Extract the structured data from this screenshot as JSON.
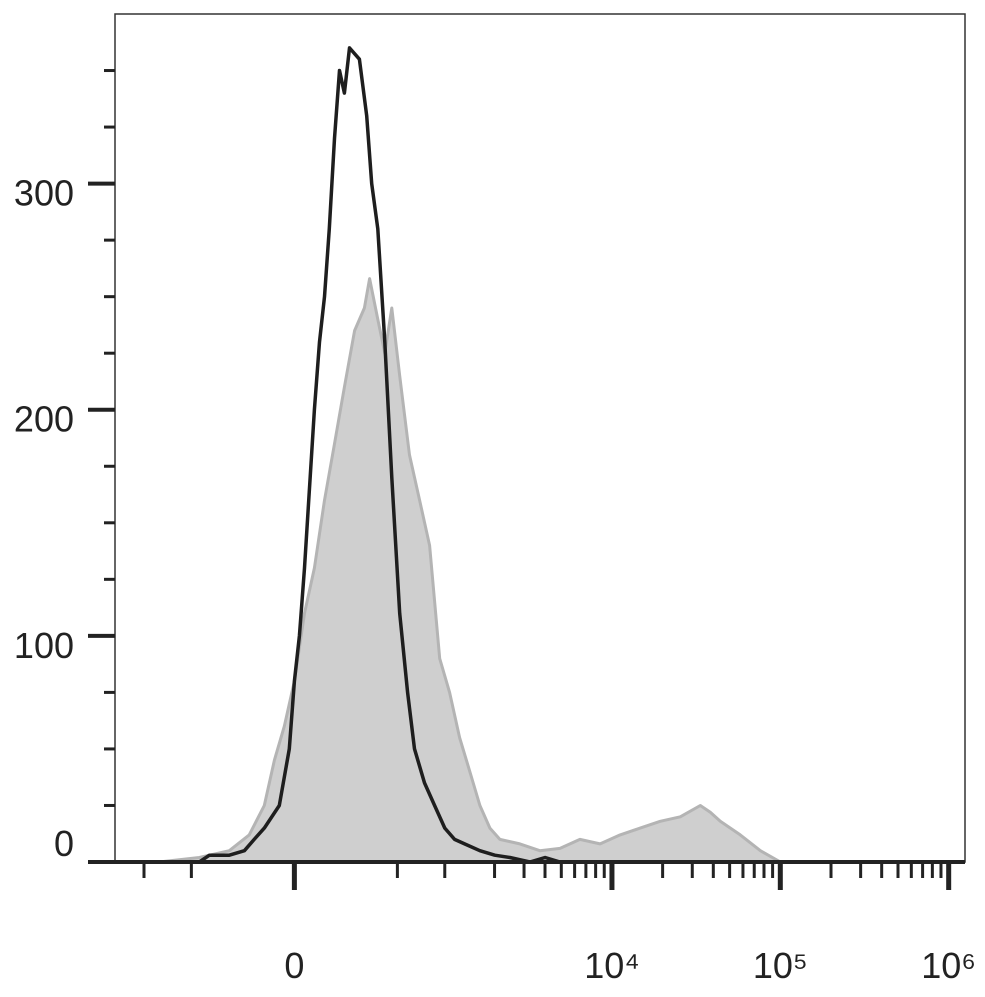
{
  "chart_data": {
    "type": "histogram-overlay",
    "xscale": "asinh",
    "xlim": [
      -1500,
      1250000
    ],
    "ylim": [
      0,
      375
    ],
    "xticks": [
      0,
      {
        "value": 10000,
        "label": "10⁴"
      },
      {
        "value": 100000,
        "label": "10⁵"
      },
      {
        "value": 1000000,
        "label": "10⁶"
      }
    ],
    "xminorticks": [
      -1000,
      -500,
      500,
      1000,
      2000,
      3000,
      4000,
      5000,
      6000,
      7000,
      8000,
      9000,
      20000,
      30000,
      40000,
      50000,
      60000,
      70000,
      80000,
      90000,
      200000,
      300000,
      400000,
      500000,
      600000,
      700000,
      800000,
      900000
    ],
    "yticks": [
      0,
      100,
      200,
      300
    ],
    "yminorticks": [
      25,
      50,
      75,
      125,
      150,
      175,
      225,
      250,
      275,
      325,
      350
    ],
    "series": [
      {
        "color": "#cfcfcf",
        "line_color": "#b4b4b4",
        "fill": true,
        "x": [
          -806,
          -442,
          -263,
          -171,
          -110,
          -72,
          -36,
          0,
          36,
          72,
          110,
          150,
          192,
          239,
          289,
          317,
          365,
          410,
          458,
          518,
          601,
          697,
          806,
          931,
          1071,
          1232,
          1420,
          1633,
          1875,
          2153,
          2834,
          3731,
          4914,
          6448,
          8502,
          11180,
          14716,
          19344,
          25454,
          33462,
          38376,
          44018,
          57876,
          76128,
          100100,
          1181000
        ],
        "values": [
          0,
          2,
          5,
          12,
          25,
          45,
          60,
          80,
          110,
          130,
          160,
          185,
          210,
          235,
          245,
          258,
          240,
          225,
          245,
          215,
          180,
          160,
          140,
          90,
          75,
          55,
          40,
          25,
          15,
          10,
          8,
          5,
          6,
          10,
          8,
          12,
          15,
          18,
          20,
          25,
          22,
          18,
          12,
          5,
          0,
          0
        ]
      },
      {
        "color": "#1e1e1e",
        "fill": false,
        "x": [
          -806,
          -442,
          -375,
          -263,
          -192,
          -150,
          -110,
          -54,
          -18,
          0,
          18,
          36,
          72,
          91,
          110,
          129,
          150,
          171,
          192,
          215,
          263,
          301,
          329,
          365,
          410,
          458,
          518,
          584,
          647,
          749,
          866,
          1000,
          1149,
          1321,
          1633,
          2007,
          2470,
          3250,
          4004,
          4914,
          1181000
        ],
        "values": [
          0,
          0,
          3,
          3,
          5,
          10,
          15,
          25,
          50,
          80,
          100,
          130,
          200,
          230,
          250,
          280,
          320,
          350,
          340,
          360,
          355,
          330,
          300,
          280,
          230,
          170,
          110,
          75,
          50,
          35,
          25,
          15,
          10,
          8,
          5,
          3,
          2,
          0,
          2,
          0,
          0
        ]
      }
    ]
  }
}
